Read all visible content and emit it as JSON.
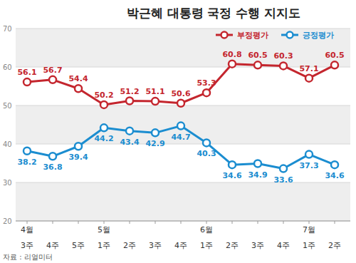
{
  "chart_data": {
    "type": "line",
    "title": "박근혜 대통령 국정 수행 지지도",
    "source": "자료 : 리얼미터",
    "categories": [
      "3주",
      "4주",
      "5주",
      "1주",
      "2주",
      "3주",
      "4주",
      "1주",
      "2주",
      "3주",
      "4주",
      "1주",
      "2주"
    ],
    "month_labels": [
      "4월",
      null,
      null,
      "5월",
      null,
      null,
      null,
      "6월",
      null,
      null,
      null,
      "7월",
      null
    ],
    "series": [
      {
        "name": "부정평가",
        "color": "#c4262e",
        "marker": "circle",
        "values": [
          56.1,
          56.7,
          54.4,
          50.2,
          51.2,
          51.1,
          50.6,
          53.3,
          60.8,
          60.5,
          60.3,
          57.1,
          60.5
        ]
      },
      {
        "name": "긍정평가",
        "color": "#1b8dd0",
        "marker": "circle",
        "values": [
          38.2,
          36.8,
          39.4,
          44.2,
          43.4,
          42.9,
          44.7,
          40.3,
          34.6,
          34.9,
          33.6,
          37.3,
          34.6
        ]
      }
    ],
    "ylim": [
      20,
      70
    ],
    "yticks": [
      20,
      30,
      40,
      50,
      60,
      70
    ],
    "grid": true,
    "data_labels": true,
    "legend": "top-right"
  }
}
